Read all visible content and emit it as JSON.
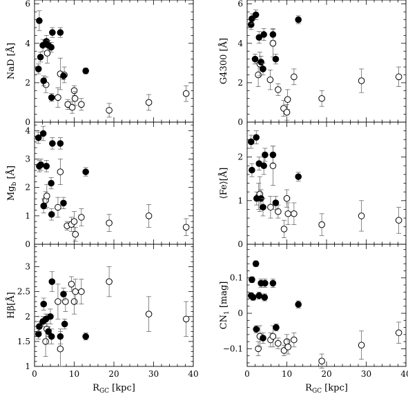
{
  "chart_data": [
    {
      "type": "scatter",
      "id": "nad",
      "ylabel_main": "NaD [",
      "ylabel_unit": "Å",
      "ylabel_close": "]",
      "xlabel_main": "R",
      "xlabel_sub": "GC",
      "xlabel_rest": " [kpc]",
      "xlim": [
        0,
        40
      ],
      "ylim": [
        0,
        6.2
      ],
      "xticks": [
        "0",
        "10",
        "20",
        "30",
        "40"
      ],
      "yticks": [
        "0",
        "2",
        "4",
        "6"
      ],
      "filled": [
        [
          1.2,
          5.15,
          0.5
        ],
        [
          1.0,
          2.7,
          0.25
        ],
        [
          1.5,
          3.3,
          0.25
        ],
        [
          2.1,
          3.9,
          0.3
        ],
        [
          2.3,
          2.1,
          0.25
        ],
        [
          3.0,
          4.1,
          0.3
        ],
        [
          3.5,
          3.9,
          0.25
        ],
        [
          4.2,
          3.8,
          0.25
        ],
        [
          4.5,
          4.55,
          0.25
        ],
        [
          4.3,
          1.25,
          0.2
        ],
        [
          6.5,
          4.55,
          0.25
        ],
        [
          7.3,
          2.35,
          0.2
        ],
        [
          12.9,
          2.6,
          0.15
        ]
      ],
      "open": [
        [
          2.9,
          1.9,
          0.4
        ],
        [
          3.2,
          3.5,
          0.5
        ],
        [
          5.9,
          1.25,
          0.5
        ],
        [
          6.5,
          2.45,
          0.8
        ],
        [
          7.5,
          2.4,
          0.4
        ],
        [
          8.4,
          0.9,
          0.25
        ],
        [
          9.5,
          0.75,
          0.3
        ],
        [
          10.0,
          1.6,
          0.25
        ],
        [
          10.2,
          1.2,
          0.35
        ],
        [
          11.8,
          0.9,
          0.3
        ],
        [
          18.8,
          0.6,
          0.35
        ],
        [
          28.8,
          1.0,
          0.4
        ],
        [
          38.2,
          1.45,
          0.4
        ]
      ]
    },
    {
      "type": "scatter",
      "id": "g4300",
      "ylabel_main": "G4300 [",
      "ylabel_unit": "Å",
      "ylabel_close": "]",
      "xlabel_main": "R",
      "xlabel_sub": "GC",
      "xlabel_rest": " [kpc]",
      "xlim": [
        0,
        40
      ],
      "ylim": [
        0,
        6.2
      ],
      "xticks": [
        "0",
        "10",
        "20",
        "30",
        "40"
      ],
      "yticks": [
        "0",
        "2",
        "4",
        "6"
      ],
      "filled": [
        [
          1.0,
          4.95,
          0.25
        ],
        [
          1.2,
          5.25,
          0.25
        ],
        [
          2.2,
          5.45,
          0.25
        ],
        [
          2.0,
          3.2,
          0.25
        ],
        [
          3.0,
          4.3,
          0.3
        ],
        [
          3.5,
          3.05,
          0.3
        ],
        [
          4.0,
          2.7,
          0.3
        ],
        [
          4.2,
          4.45,
          0.3
        ],
        [
          6.5,
          4.45,
          0.3
        ],
        [
          7.2,
          3.2,
          0.25
        ],
        [
          12.9,
          5.2,
          0.2
        ]
      ],
      "open": [
        [
          2.8,
          2.4,
          0.6
        ],
        [
          3.2,
          2.95,
          0.6
        ],
        [
          5.8,
          2.15,
          0.5
        ],
        [
          6.5,
          4.0,
          0.7
        ],
        [
          7.8,
          1.65,
          0.3
        ],
        [
          9.2,
          0.7,
          0.4
        ],
        [
          10.0,
          0.5,
          0.4
        ],
        [
          10.2,
          1.15,
          0.5
        ],
        [
          11.8,
          2.3,
          0.4
        ],
        [
          18.8,
          1.2,
          0.4
        ],
        [
          28.8,
          2.1,
          0.6
        ],
        [
          38.2,
          2.3,
          0.5
        ]
      ]
    },
    {
      "type": "scatter",
      "id": "mgb",
      "ylabel_main": "Mg",
      "ylabel_sub": "b",
      "ylabel_rest": " [",
      "ylabel_unit": "Å",
      "ylabel_close": "]",
      "xlabel_main": "R",
      "xlabel_sub": "GC",
      "xlabel_rest": " [kpc]",
      "xlim": [
        0,
        40
      ],
      "ylim": [
        0,
        4.3
      ],
      "xticks": [
        "0",
        "10",
        "20",
        "30",
        "40"
      ],
      "yticks": [
        "0",
        "1",
        "2",
        "3",
        "4"
      ],
      "filled": [
        [
          1.0,
          3.75,
          0.2
        ],
        [
          2.2,
          3.9,
          0.25
        ],
        [
          1.2,
          2.75,
          0.2
        ],
        [
          1.6,
          2.8,
          0.2
        ],
        [
          2.3,
          1.35,
          0.25
        ],
        [
          3.0,
          2.75,
          0.2
        ],
        [
          4.2,
          2.15,
          0.2
        ],
        [
          4.5,
          3.55,
          0.2
        ],
        [
          4.3,
          1.05,
          0.2
        ],
        [
          6.5,
          3.55,
          0.2
        ],
        [
          7.3,
          1.45,
          0.2
        ],
        [
          12.9,
          2.55,
          0.15
        ]
      ],
      "open": [
        [
          2.8,
          1.55,
          0.3
        ],
        [
          3.1,
          1.7,
          0.4
        ],
        [
          5.9,
          1.3,
          0.35
        ],
        [
          6.5,
          2.55,
          0.45
        ],
        [
          8.2,
          0.65,
          0.15
        ],
        [
          9.3,
          0.7,
          0.25
        ],
        [
          10.0,
          0.8,
          0.35
        ],
        [
          10.3,
          0.35,
          0.25
        ],
        [
          11.8,
          0.95,
          0.3
        ],
        [
          18.8,
          0.75,
          0.3
        ],
        [
          28.8,
          1.0,
          0.4
        ],
        [
          38.2,
          0.6,
          0.3
        ]
      ]
    },
    {
      "type": "scatter",
      "id": "fe",
      "ylabel_main": "⟨Fe⟩[",
      "ylabel_unit": "Å",
      "ylabel_close": "]",
      "xlabel_main": "R",
      "xlabel_sub": "GC",
      "xlabel_rest": " [kpc]",
      "xlim": [
        0,
        40
      ],
      "ylim": [
        0,
        2.8
      ],
      "xticks": [
        "0",
        "10",
        "20",
        "30",
        "40"
      ],
      "yticks": [
        "0",
        "1",
        "2"
      ],
      "filled": [
        [
          1.0,
          2.35,
          0.15
        ],
        [
          2.3,
          2.45,
          0.15
        ],
        [
          1.2,
          1.7,
          0.15
        ],
        [
          2.4,
          1.05,
          0.15
        ],
        [
          3.0,
          1.85,
          0.15
        ],
        [
          3.5,
          1.05,
          0.2
        ],
        [
          4.0,
          0.85,
          0.2
        ],
        [
          4.2,
          1.8,
          0.2
        ],
        [
          4.5,
          2.05,
          0.15
        ],
        [
          6.5,
          2.05,
          0.2
        ],
        [
          7.2,
          0.95,
          0.15
        ],
        [
          12.9,
          1.55,
          0.1
        ]
      ],
      "open": [
        [
          2.9,
          1.1,
          0.3
        ],
        [
          3.2,
          1.15,
          0.4
        ],
        [
          5.9,
          0.85,
          0.25
        ],
        [
          6.5,
          1.8,
          0.45
        ],
        [
          7.8,
          0.75,
          0.15
        ],
        [
          9.3,
          0.35,
          0.2
        ],
        [
          10.0,
          1.05,
          0.2
        ],
        [
          10.3,
          0.7,
          0.25
        ],
        [
          11.8,
          0.7,
          0.25
        ],
        [
          18.8,
          0.45,
          0.25
        ],
        [
          28.8,
          0.65,
          0.35
        ],
        [
          38.2,
          0.55,
          0.3
        ]
      ]
    },
    {
      "type": "scatter",
      "id": "hbeta",
      "ylabel_main": "Hβ[",
      "ylabel_unit": "Å",
      "ylabel_close": "]",
      "xlabel_main": "R",
      "xlabel_sub": "GC",
      "xlabel_rest": " [kpc]",
      "xlim": [
        0,
        40
      ],
      "ylim": [
        1,
        3.45
      ],
      "xticks": [
        "0",
        "10",
        "20",
        "30",
        "40"
      ],
      "yticks": [
        "1",
        "1.5",
        "2",
        "2.5",
        "3"
      ],
      "filled": [
        [
          1.0,
          1.65,
          0.1
        ],
        [
          1.2,
          1.8,
          0.1
        ],
        [
          2.1,
          1.9,
          0.1
        ],
        [
          2.3,
          2.25,
          0.12
        ],
        [
          2.9,
          1.95,
          0.1
        ],
        [
          3.5,
          1.7,
          0.1
        ],
        [
          4.0,
          2.0,
          0.15
        ],
        [
          4.4,
          2.7,
          0.2
        ],
        [
          4.3,
          1.6,
          0.15
        ],
        [
          6.5,
          1.6,
          0.15
        ],
        [
          7.3,
          2.45,
          0.12
        ],
        [
          7.6,
          1.85,
          0.1
        ],
        [
          12.9,
          1.6,
          0.07
        ]
      ],
      "open": [
        [
          2.8,
          1.5,
          0.3
        ],
        [
          3.1,
          1.75,
          0.3
        ],
        [
          5.9,
          2.3,
          0.35
        ],
        [
          6.5,
          1.35,
          0.35
        ],
        [
          7.8,
          2.3,
          0.2
        ],
        [
          9.3,
          2.65,
          0.15
        ],
        [
          10.0,
          2.3,
          0.25
        ],
        [
          10.3,
          2.5,
          0.25
        ],
        [
          11.8,
          2.5,
          0.25
        ],
        [
          18.8,
          2.7,
          0.3
        ],
        [
          28.8,
          2.05,
          0.35
        ],
        [
          38.2,
          1.95,
          0.35
        ]
      ]
    },
    {
      "type": "scatter",
      "id": "cn1",
      "ylabel_main": "CN",
      "ylabel_sub": "1",
      "ylabel_rest": " [mag]",
      "ylabel_unit": "",
      "ylabel_close": "",
      "xlabel_main": "R",
      "xlabel_sub": "GC",
      "xlabel_rest": " [kpc]",
      "xlim": [
        0,
        40
      ],
      "ylim": [
        -0.15,
        0.195
      ],
      "xticks": [
        "0",
        "10",
        "20",
        "30",
        "40"
      ],
      "yticks": [
        "−0.1",
        "0",
        "0.1"
      ],
      "ytick_values": [
        -0.1,
        0,
        0.1
      ],
      "filled": [
        [
          1.0,
          0.05,
          0.008
        ],
        [
          1.2,
          0.095,
          0.008
        ],
        [
          1.5,
          0.045,
          0.008
        ],
        [
          2.2,
          0.14,
          0.008
        ],
        [
          2.3,
          -0.045,
          0.01
        ],
        [
          3.0,
          0.05,
          0.01
        ],
        [
          3.5,
          0.085,
          0.012
        ],
        [
          4.0,
          -0.07,
          0.015
        ],
        [
          4.4,
          0.045,
          0.01
        ],
        [
          4.5,
          0.085,
          0.012
        ],
        [
          6.5,
          0.085,
          0.012
        ],
        [
          7.3,
          -0.04,
          0.01
        ],
        [
          12.9,
          0.025,
          0.01
        ]
      ],
      "open": [
        [
          2.8,
          -0.1,
          0.02
        ],
        [
          3.2,
          -0.065,
          0.03
        ],
        [
          5.9,
          -0.075,
          0.02
        ],
        [
          6.5,
          -0.065,
          0.03
        ],
        [
          7.8,
          -0.085,
          0.015
        ],
        [
          9.3,
          -0.105,
          0.015
        ],
        [
          10.0,
          -0.08,
          0.02
        ],
        [
          10.3,
          -0.095,
          0.02
        ],
        [
          11.8,
          -0.075,
          0.02
        ],
        [
          18.8,
          -0.135,
          0.02
        ],
        [
          28.8,
          -0.09,
          0.04
        ],
        [
          38.2,
          -0.055,
          0.03
        ]
      ]
    }
  ]
}
